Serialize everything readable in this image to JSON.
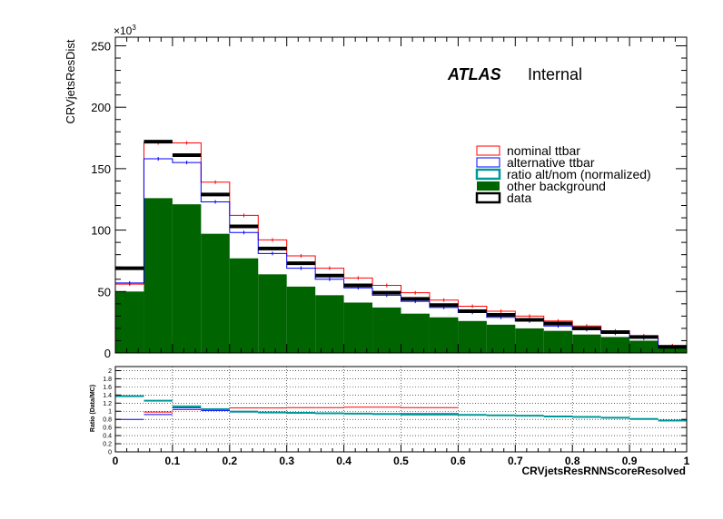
{
  "chart_data": [
    {
      "type": "histogram",
      "ylabel": "CRVjetsResDist",
      "y_exponent_label": "×10",
      "y_exponent_power": "3",
      "yscale": 1000,
      "ylim": [
        0,
        257000
      ],
      "xlim": [
        0,
        1
      ],
      "y_ticks": [
        0,
        50,
        100,
        150,
        200,
        250
      ],
      "bin_edges": [
        0,
        0.05,
        0.1,
        0.15,
        0.2,
        0.25,
        0.3,
        0.35,
        0.4,
        0.45,
        0.5,
        0.55,
        0.6,
        0.65,
        0.7,
        0.75,
        0.8,
        0.85,
        0.9,
        0.95,
        1.0
      ],
      "atlas_label": "ATLAS",
      "atlas_sublabel": "Internal",
      "legend": [
        {
          "key": "nominal",
          "label": "nominal ttbar",
          "color": "#ff0000",
          "style": "box"
        },
        {
          "key": "alternative",
          "label": "alternative ttbar",
          "color": "#0000ff",
          "style": "box"
        },
        {
          "key": "ratio",
          "label": "ratio alt/nom (normalized)",
          "color": "#009999",
          "style": "box-thick"
        },
        {
          "key": "other",
          "label": "other background",
          "color": "#006400",
          "style": "fill"
        },
        {
          "key": "data",
          "label": "data",
          "color": "#000000",
          "style": "box-thick"
        }
      ],
      "series": [
        {
          "name": "nominal ttbar",
          "color": "#ff0000",
          "values": [
            56000,
            171000,
            171000,
            139000,
            112000,
            92000,
            79000,
            69000,
            61000,
            55000,
            49000,
            43000,
            38000,
            34000,
            30000,
            26000,
            22000,
            18000,
            14000,
            6000
          ]
        },
        {
          "name": "alternative ttbar",
          "color": "#0000ff",
          "values": [
            57000,
            158000,
            155000,
            123000,
            98000,
            81000,
            69000,
            60000,
            53000,
            47000,
            42000,
            37000,
            33000,
            29000,
            26000,
            22000,
            19000,
            16000,
            12000,
            5000
          ]
        },
        {
          "name": "other background",
          "color": "#006400",
          "values": [
            50000,
            126000,
            121000,
            97000,
            77000,
            64000,
            54000,
            47000,
            41000,
            37000,
            32000,
            29000,
            26000,
            23000,
            20000,
            18000,
            15000,
            13000,
            10000,
            4000
          ]
        },
        {
          "name": "data",
          "color": "#000000",
          "values": [
            69000,
            172000,
            161000,
            129000,
            103000,
            85000,
            73000,
            63000,
            55000,
            49000,
            44000,
            39000,
            34000,
            31000,
            27000,
            24000,
            20000,
            17000,
            13000,
            5000
          ]
        }
      ]
    },
    {
      "type": "histogram",
      "ylabel": "Ratio (Data/MC)",
      "xlabel": "CRVjetsResRNNScoreResolved",
      "ylim": [
        0,
        2.1
      ],
      "xlim": [
        0,
        1
      ],
      "grid": true,
      "y_ticks": [
        "0",
        "0.2",
        "0.4",
        "0.6",
        "0.8",
        "1",
        "1.2",
        "1.4",
        "1.6",
        "1.8",
        "2"
      ],
      "x_ticks": [
        "0",
        "0.1",
        "0.2",
        "0.3",
        "0.4",
        "0.5",
        "0.6",
        "0.7",
        "0.8",
        "0.9",
        "1"
      ],
      "bin_edges": [
        0,
        0.05,
        0.1,
        0.15,
        0.2,
        0.25,
        0.3,
        0.35,
        0.4,
        0.45,
        0.5,
        0.55,
        0.6,
        0.65,
        0.7,
        0.75,
        0.8,
        0.85,
        0.9,
        0.95,
        1.0
      ],
      "series": [
        {
          "name": "nominal",
          "color": "#ff0000",
          "values": [
            null,
            0.98,
            1.04,
            1.06,
            1.08,
            1.08,
            1.09,
            1.09,
            1.1,
            1.1,
            1.09,
            1.09,
            null,
            null,
            null,
            null,
            null,
            null,
            null,
            null
          ]
        },
        {
          "name": "alternative",
          "color": "#0000ff",
          "values": [
            0.8,
            0.92,
            1.08,
            1.02,
            0.98,
            0.97,
            0.96,
            0.95,
            0.95,
            0.94,
            0.94,
            0.94,
            null,
            null,
            null,
            null,
            null,
            null,
            null,
            null
          ]
        },
        {
          "name": "ratio",
          "color": "#009999",
          "values": [
            1.37,
            1.26,
            1.12,
            1.05,
            0.99,
            0.97,
            0.96,
            0.95,
            0.94,
            0.93,
            0.92,
            0.92,
            0.91,
            0.9,
            0.89,
            0.87,
            0.86,
            0.84,
            0.81,
            0.77
          ]
        }
      ]
    }
  ]
}
